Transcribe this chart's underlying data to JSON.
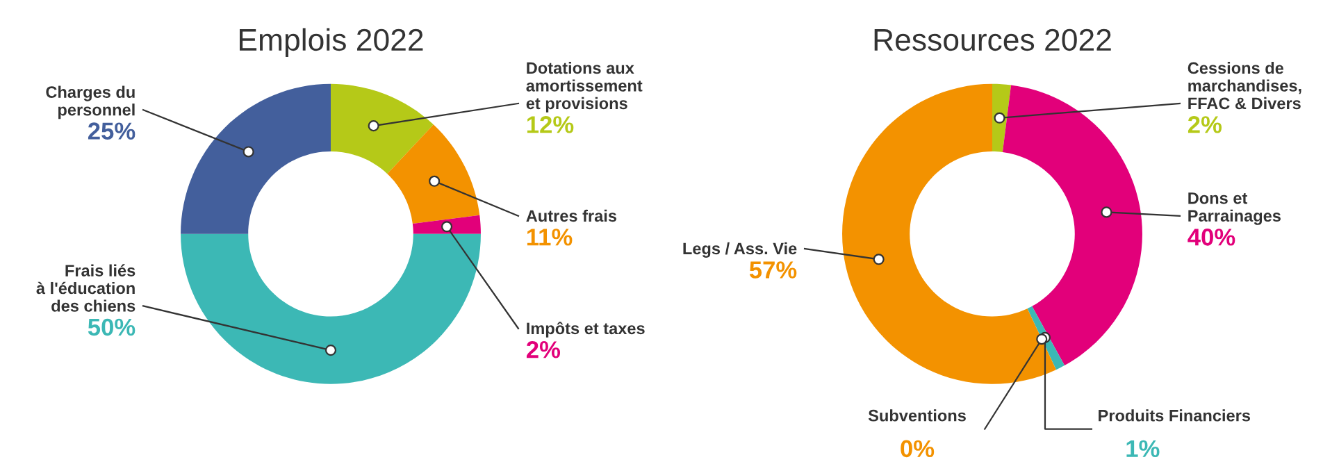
{
  "chart_data": [
    {
      "type": "donut",
      "title": "Emplois 2022",
      "categories": [
        "Dotations aux\namortissement\net provisions",
        "Autres frais",
        "Impôts et taxes",
        "Frais liés\nà l'éducation\ndes chiens",
        "Charges du\npersonnel"
      ],
      "values": [
        12,
        11,
        2,
        50,
        25
      ],
      "colors": [
        "#b5c918",
        "#f39200",
        "#e2007a",
        "#3cb8b5",
        "#435f9c"
      ],
      "value_labels": [
        "12%",
        "11%",
        "2%",
        "50%",
        "25%"
      ]
    },
    {
      "type": "donut",
      "title": "Ressources 2022",
      "categories": [
        "Cessions de\nmarchandises,\nFFAC & Divers",
        "Dons et\nParrainages",
        "Produits Financiers",
        "Subventions",
        "Legs / Ass. Vie"
      ],
      "values": [
        2,
        40,
        1,
        0,
        57
      ],
      "colors": [
        "#b5c918",
        "#e2007a",
        "#3cb8b5",
        "#f39200",
        "#f39200"
      ],
      "value_labels": [
        "2%",
        "40%",
        "1%",
        "0%",
        "57%"
      ]
    }
  ]
}
